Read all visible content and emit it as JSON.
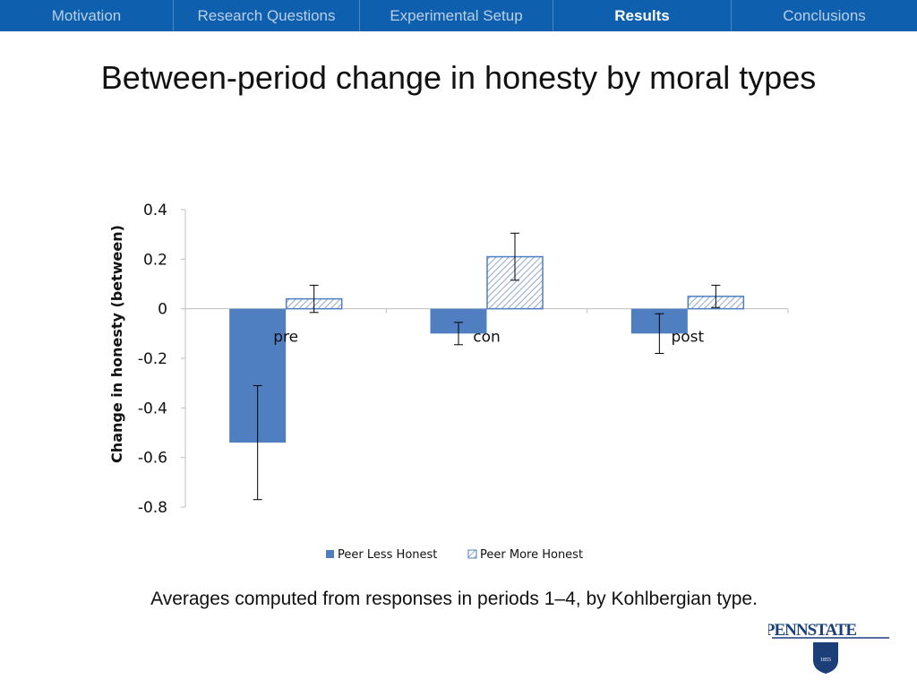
{
  "nav": {
    "items": [
      {
        "label": "Motivation",
        "active": false
      },
      {
        "label": "Research Questions",
        "active": false
      },
      {
        "label": "Experimental Setup",
        "active": false
      },
      {
        "label": "Results",
        "active": true
      },
      {
        "label": "Conclusions",
        "active": false
      }
    ]
  },
  "title": "Between-period change in honesty by moral types",
  "caption": "Averages computed from responses in periods 1–4, by Kohlbergian type.",
  "logo": {
    "text": "PENNSTATE",
    "year": "1855"
  },
  "colors": {
    "nav_bg": "#0e5fae",
    "series_less": "#4f7fc1",
    "series_more_stroke": "#4f7fc1",
    "series_more_hatch": "#8fa9cf"
  },
  "chart_data": {
    "type": "bar",
    "categories": [
      "pre",
      "con",
      "post"
    ],
    "series": [
      {
        "name": "Peer Less Honest",
        "values": [
          -0.54,
          -0.1,
          -0.1
        ],
        "error": [
          0.23,
          0.045,
          0.08
        ]
      },
      {
        "name": "Peer More Honest",
        "values": [
          0.04,
          0.21,
          0.05
        ],
        "error": [
          0.055,
          0.095,
          0.045
        ]
      }
    ],
    "ylabel": "Change in honesty (between)",
    "ylim": [
      -0.8,
      0.4
    ],
    "yticks": [
      "0.4",
      "0.2",
      "0",
      "-0.2",
      "-0.4",
      "-0.6",
      "-0.8"
    ],
    "legend_position": "bottom",
    "grid": false
  }
}
